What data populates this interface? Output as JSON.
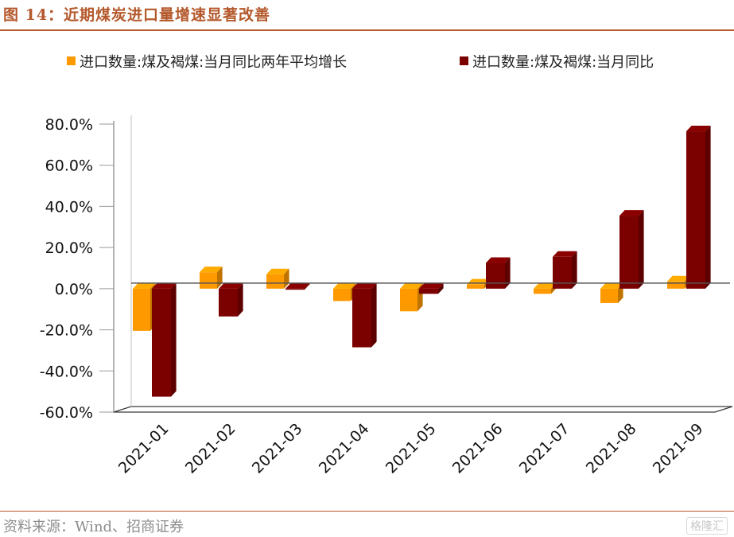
{
  "title": "图 14：近期煤炭进口量增速显著改善",
  "source": "资料来源：Wind、招商证券",
  "watermark": "格隆汇",
  "colors": {
    "series1": "#ff9900",
    "series2": "#7b0000",
    "accent": "#b4592c"
  },
  "chart_data": {
    "type": "bar",
    "categories": [
      "2021-01",
      "2021-02",
      "2021-03",
      "2021-04",
      "2021-05",
      "2021-06",
      "2021-07",
      "2021-08",
      "2021-09"
    ],
    "series": [
      {
        "name": "进口数量:煤及褐煤:当月同比两年平均增长",
        "values": [
          -20.5,
          8.0,
          7.0,
          -6.0,
          -11.0,
          2.0,
          -2.5,
          -7.0,
          3.5
        ]
      },
      {
        "name": "进口数量:煤及褐煤:当月同比",
        "values": [
          -52.5,
          -13.5,
          -0.5,
          -28.5,
          -2.5,
          12.5,
          15.5,
          35.5,
          76.5
        ]
      }
    ],
    "ylim": [
      -60,
      80
    ],
    "yticks": [
      -60,
      -40,
      -20,
      0,
      20,
      40,
      60,
      80
    ],
    "ytick_labels": [
      "-60.0%",
      "-40.0%",
      "-20.0%",
      "0.0%",
      "20.0%",
      "40.0%",
      "60.0%",
      "80.0%"
    ],
    "legend_position": "top"
  }
}
